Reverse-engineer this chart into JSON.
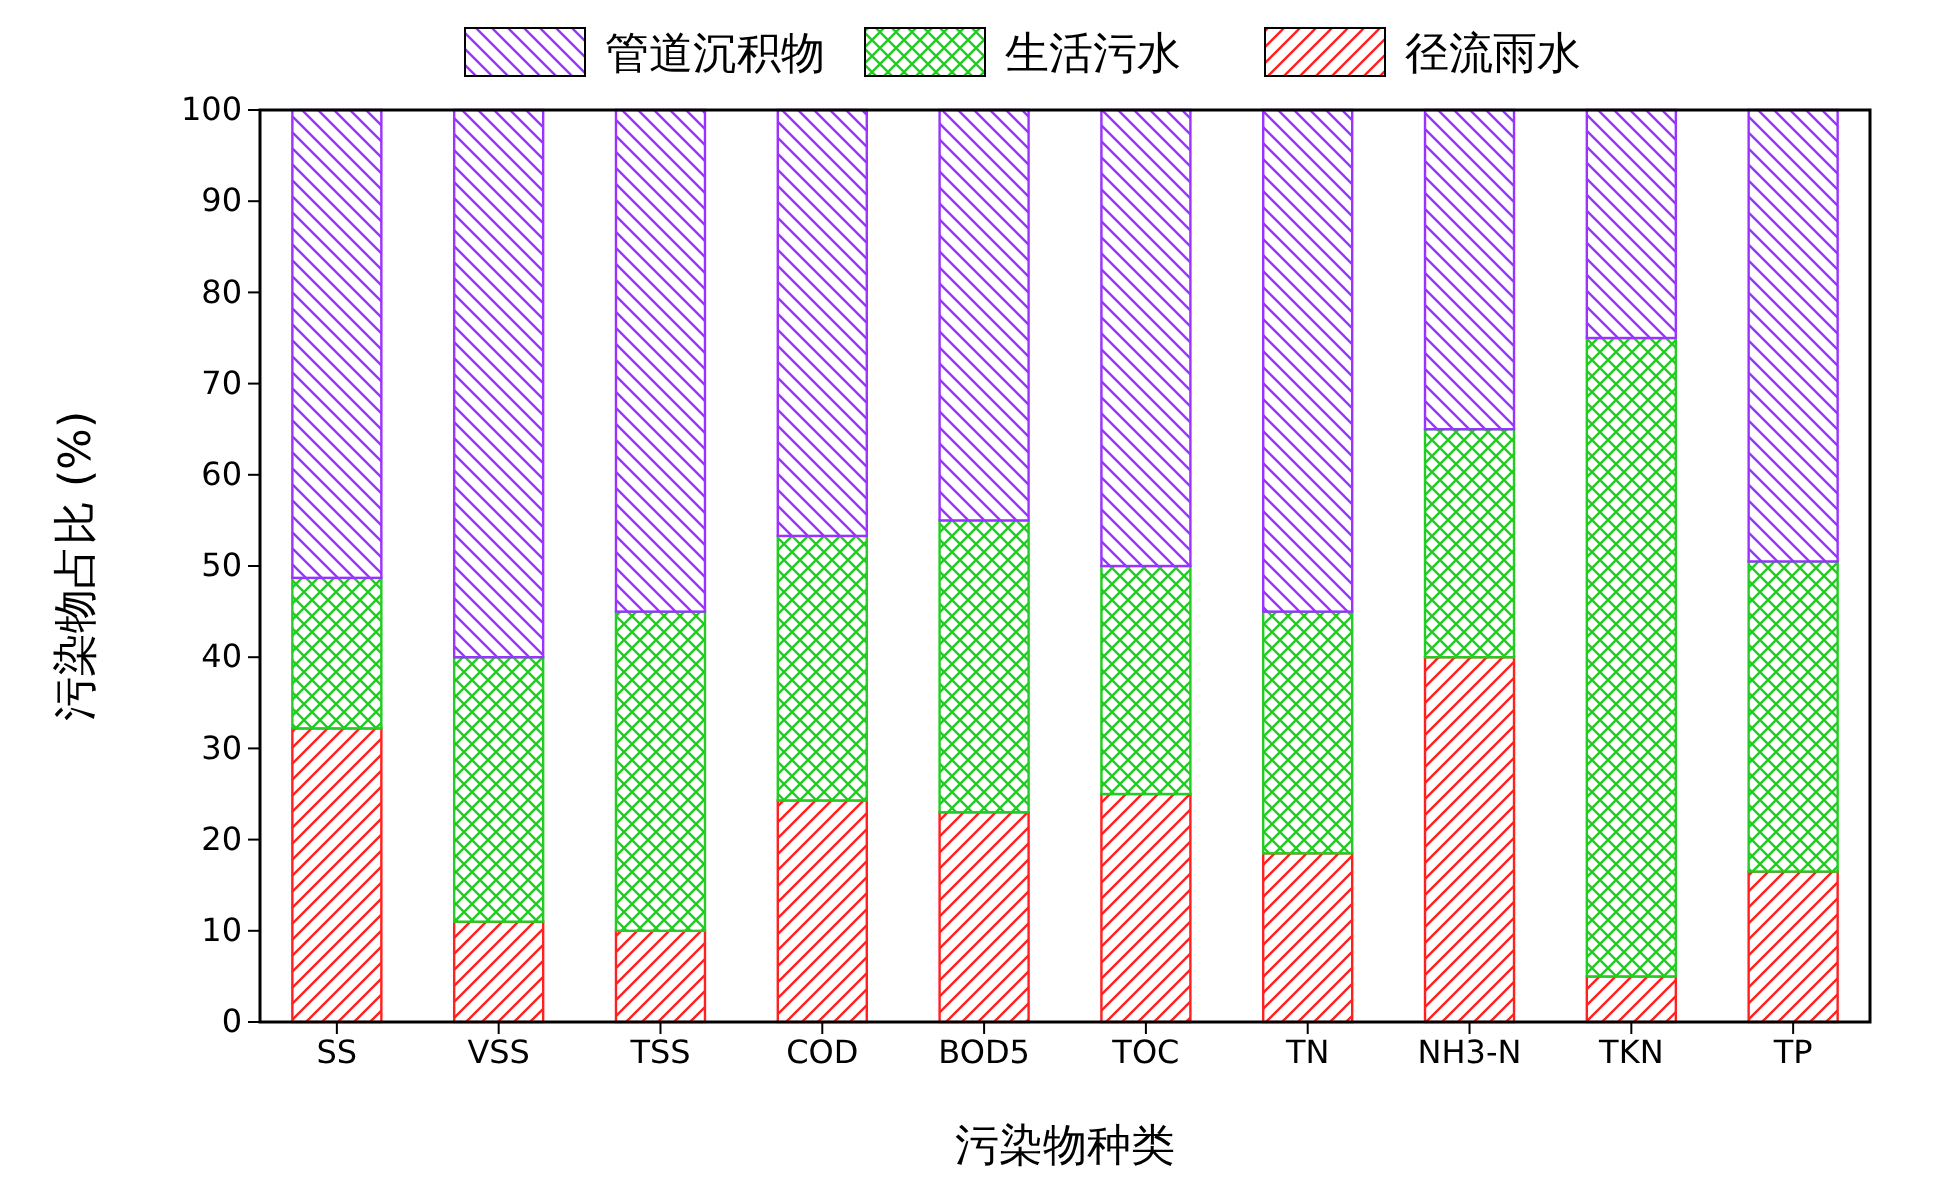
{
  "chart_data": {
    "type": "bar",
    "stacked": true,
    "xlabel": "污染物种类",
    "ylabel": "污染物占比 (%)",
    "categories": [
      "SS",
      "VSS",
      "TSS",
      "COD",
      "BOD5",
      "TOC",
      "TN",
      "NH3-N",
      "TKN",
      "TP"
    ],
    "series": [
      {
        "name": "径流雨水",
        "color": "#ff2020",
        "values": [
          32.2,
          11,
          10,
          24.3,
          23,
          25,
          18.5,
          40,
          5,
          16.5
        ]
      },
      {
        "name": "生活污水",
        "color": "#22cc22",
        "values": [
          16.5,
          29,
          35,
          29,
          32,
          25,
          26.5,
          25,
          70,
          34
        ]
      },
      {
        "name": "管道沉积物",
        "color": "#9933ff",
        "values": [
          51.3,
          60,
          55,
          46.7,
          45,
          50,
          55,
          35,
          25,
          49.5
        ]
      }
    ],
    "ylim": [
      0,
      100
    ],
    "yticks": [
      0,
      10,
      20,
      30,
      40,
      50,
      60,
      70,
      80,
      90,
      100
    ],
    "legend": "top",
    "grid": false
  }
}
